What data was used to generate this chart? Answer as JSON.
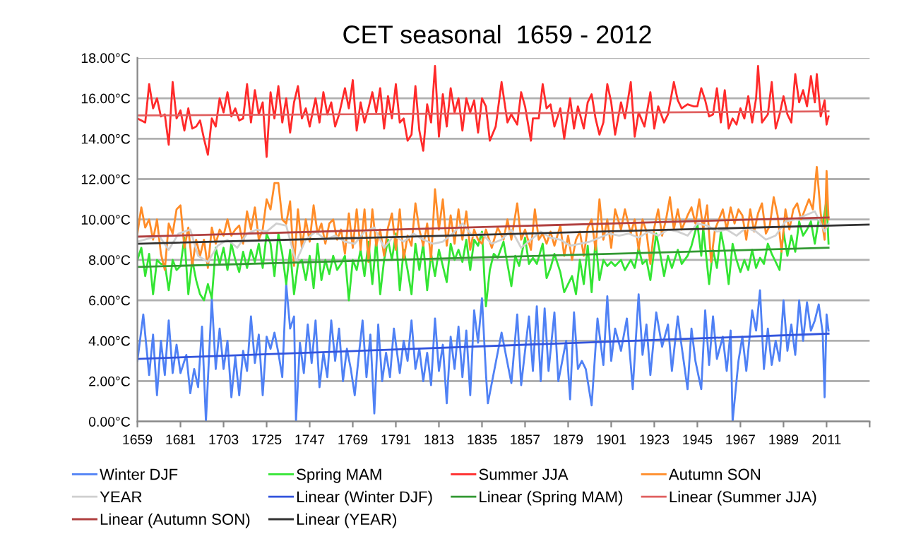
{
  "chart_data": {
    "type": "line",
    "title": "CET seasonal  1659 - 2012",
    "xlim": [
      1659,
      2033
    ],
    "xticks": [
      1659,
      1681,
      1703,
      1725,
      1747,
      1769,
      1791,
      1813,
      1835,
      1857,
      1879,
      1901,
      1923,
      1945,
      1967,
      1989,
      2011,
      {
        "value": 2033,
        "label": null
      }
    ],
    "ylim": [
      0,
      18
    ],
    "yticks": [
      {
        "value": 0,
        "label": "0.00°C"
      },
      {
        "value": 2,
        "label": "2.00°C"
      },
      {
        "value": 4,
        "label": "4.00°C"
      },
      {
        "value": 6,
        "label": "6.00°C"
      },
      {
        "value": 8,
        "label": "8.00°C"
      },
      {
        "value": 10,
        "label": "10.00°C"
      },
      {
        "value": 12,
        "label": "12.00°C"
      },
      {
        "value": 14,
        "label": "14.00°C"
      },
      {
        "value": 16,
        "label": "16.00°C"
      },
      {
        "value": 18,
        "label": "18.00°C"
      }
    ],
    "grid": "y",
    "legend": "bottom",
    "marker": "none",
    "line_style": "solid",
    "series": [
      {
        "name": "Winter DJF",
        "color": "#4f81f5",
        "x": [
          1659,
          1662,
          1665,
          1667,
          1669,
          1671,
          1673,
          1675,
          1677,
          1679,
          1681,
          1684,
          1686,
          1688,
          1690,
          1692,
          1694,
          1697,
          1699,
          1701,
          1703,
          1705,
          1707,
          1709,
          1711,
          1713,
          1715,
          1717,
          1719,
          1721,
          1723,
          1725,
          1727,
          1729,
          1731,
          1733,
          1735,
          1737,
          1739,
          1740,
          1742,
          1744,
          1746,
          1748,
          1750,
          1752,
          1754,
          1756,
          1758,
          1760,
          1762,
          1764,
          1766,
          1768,
          1770,
          1772,
          1774,
          1776,
          1778,
          1780,
          1782,
          1784,
          1786,
          1788,
          1790,
          1793,
          1795,
          1797,
          1799,
          1801,
          1803,
          1805,
          1807,
          1809,
          1811,
          1813,
          1815,
          1817,
          1819,
          1821,
          1823,
          1825,
          1827,
          1829,
          1831,
          1833,
          1835,
          1837,
          1838,
          1845,
          1850,
          1853,
          1855,
          1859,
          1861,
          1863,
          1865,
          1867,
          1869,
          1872,
          1874,
          1878,
          1880,
          1882,
          1884,
          1886,
          1888,
          1891,
          1894,
          1897,
          1899,
          1901,
          1903,
          1906,
          1909,
          1911,
          1912,
          1915,
          1917,
          1919,
          1921,
          1924,
          1927,
          1930,
          1932,
          1935,
          1937,
          1940,
          1942,
          1944,
          1947,
          1949,
          1951,
          1953,
          1955,
          1958,
          1960,
          1962,
          1963,
          1966,
          1968,
          1970,
          1973,
          1975,
          1977,
          1979,
          1981,
          1983,
          1985,
          1987,
          1989,
          1991,
          1993,
          1995,
          1997,
          1999,
          2001,
          2003,
          2005,
          2007,
          2009,
          2010,
          2011,
          2012
        ],
        "values": [
          3.0,
          5.3,
          2.3,
          4.3,
          1.3,
          4.0,
          2.3,
          5.0,
          2.4,
          3.8,
          2.4,
          3.3,
          1.4,
          2.6,
          1.7,
          4.7,
          0.0,
          6.1,
          2.6,
          4.6,
          2.6,
          4.0,
          1.2,
          3.2,
          1.3,
          3.5,
          2.5,
          5.2,
          2.9,
          4.3,
          1.3,
          4.2,
          3.6,
          4.4,
          3.4,
          2.2,
          6.8,
          4.6,
          5.2,
          0.0,
          3.9,
          2.4,
          4.8,
          2.9,
          5.0,
          1.7,
          3.4,
          2.2,
          5.0,
          3.0,
          4.6,
          2.0,
          3.6,
          2.6,
          1.3,
          3.2,
          5.0,
          2.2,
          4.3,
          0.4,
          4.8,
          2.0,
          3.4,
          2.2,
          4.6,
          2.4,
          4.0,
          3.0,
          5.0,
          2.6,
          3.6,
          2.0,
          3.4,
          1.8,
          5.1,
          2.5,
          3.8,
          0.9,
          4.2,
          2.6,
          4.7,
          2.2,
          4.5,
          1.3,
          5.5,
          3.9,
          6.1,
          2.4,
          0.9,
          4.4,
          1.9,
          5.3,
          1.8,
          5.2,
          2.5,
          5.7,
          2.0,
          5.6,
          2.5,
          5.4,
          2.0,
          4.0,
          1.1,
          5.4,
          2.6,
          3.0,
          2.6,
          0.8,
          5.1,
          2.8,
          6.2,
          3.0,
          4.6,
          3.5,
          5.1,
          2.8,
          1.6,
          6.3,
          3.3,
          4.8,
          2.3,
          5.4,
          3.7,
          4.8,
          2.5,
          5.2,
          3.7,
          1.6,
          4.6,
          3.0,
          1.6,
          5.5,
          2.8,
          5.2,
          3.1,
          4.2,
          2.5,
          4.5,
          0.0,
          3.0,
          4.2,
          2.5,
          5.5,
          4.5,
          6.5,
          2.6,
          4.6,
          2.8,
          4.0,
          3.0,
          6.0,
          3.5,
          4.8,
          3.3,
          6.0,
          4.0,
          5.9,
          4.5,
          5.0,
          5.8,
          4.4,
          1.2,
          5.3,
          4.5
        ]
      },
      {
        "name": "Spring MAM",
        "color": "#33e533",
        "x": [
          1659,
          1661,
          1663,
          1665,
          1667,
          1669,
          1671,
          1673,
          1675,
          1677,
          1679,
          1681,
          1683,
          1685,
          1687,
          1689,
          1691,
          1693,
          1695,
          1697,
          1699,
          1701,
          1703,
          1705,
          1707,
          1709,
          1711,
          1713,
          1715,
          1717,
          1719,
          1721,
          1723,
          1725,
          1727,
          1729,
          1731,
          1733,
          1735,
          1737,
          1739,
          1741,
          1743,
          1745,
          1747,
          1749,
          1751,
          1753,
          1755,
          1757,
          1759,
          1761,
          1763,
          1765,
          1767,
          1769,
          1771,
          1773,
          1775,
          1777,
          1779,
          1781,
          1783,
          1785,
          1787,
          1789,
          1791,
          1793,
          1795,
          1797,
          1799,
          1801,
          1803,
          1805,
          1807,
          1809,
          1811,
          1813,
          1815,
          1817,
          1819,
          1821,
          1823,
          1825,
          1827,
          1829,
          1831,
          1833,
          1835,
          1837,
          1839,
          1841,
          1843,
          1846,
          1848,
          1850,
          1852,
          1854,
          1857,
          1859,
          1861,
          1863,
          1866,
          1868,
          1870,
          1872,
          1875,
          1877,
          1879,
          1881,
          1883,
          1885,
          1887,
          1889,
          1891,
          1893,
          1895,
          1897,
          1899,
          1901,
          1903,
          1906,
          1908,
          1911,
          1913,
          1915,
          1917,
          1919,
          1921,
          1924,
          1926,
          1928,
          1930,
          1932,
          1935,
          1937,
          1940,
          1942,
          1945,
          1947,
          1948,
          1951,
          1953,
          1955,
          1957,
          1959,
          1961,
          1963,
          1965,
          1967,
          1969,
          1971,
          1973,
          1975,
          1977,
          1979,
          1981,
          1983,
          1985,
          1987,
          1989,
          1991,
          1993,
          1995,
          1997,
          1999,
          2001,
          2003,
          2005,
          2007,
          2009,
          2011,
          2012
        ],
        "values": [
          8.0,
          8.6,
          7.2,
          8.3,
          6.3,
          8.0,
          7.8,
          7.8,
          6.5,
          8.0,
          7.5,
          7.7,
          9.1,
          6.3,
          8.0,
          7.0,
          6.3,
          6.0,
          6.8,
          6.1,
          8.6,
          7.8,
          8.6,
          7.5,
          8.8,
          8.0,
          7.4,
          8.4,
          7.6,
          8.5,
          7.9,
          8.8,
          7.6,
          9.3,
          8.8,
          7.2,
          9.3,
          8.3,
          6.8,
          8.5,
          6.3,
          7.8,
          8.0,
          7.0,
          8.2,
          6.6,
          8.8,
          7.0,
          8.0,
          7.3,
          8.2,
          7.5,
          7.8,
          8.2,
          6.0,
          8.0,
          7.5,
          8.5,
          7.2,
          8.9,
          6.8,
          9.0,
          6.3,
          8.0,
          9.0,
          8.0,
          9.3,
          6.5,
          8.5,
          7.5,
          6.3,
          8.8,
          7.5,
          8.8,
          6.5,
          8.3,
          7.2,
          8.5,
          7.7,
          6.9,
          8.8,
          8.0,
          8.5,
          7.9,
          9.0,
          7.5,
          9.0,
          8.7,
          9.4,
          5.7,
          7.5,
          8.3,
          8.1,
          8.9,
          7.8,
          6.7,
          8.2,
          7.7,
          9.1,
          7.8,
          8.1,
          7.8,
          8.8,
          7.1,
          7.6,
          8.3,
          7.4,
          6.4,
          6.8,
          7.2,
          6.3,
          8.0,
          6.8,
          8.7,
          6.4,
          9.0,
          7.0,
          8.0,
          7.7,
          7.9,
          7.7,
          8.0,
          7.5,
          8.0,
          7.6,
          8.6,
          7.8,
          8.0,
          7.0,
          9.3,
          8.3,
          7.2,
          8.2,
          7.6,
          8.5,
          7.8,
          8.2,
          8.7,
          9.8,
          8.2,
          9.6,
          6.8,
          8.5,
          7.6,
          9.4,
          8.4,
          6.8,
          8.8,
          8.0,
          7.4,
          8.0,
          7.5,
          8.5,
          7.6,
          8.1,
          7.8,
          8.8,
          8.3,
          7.9,
          7.5,
          9.4,
          8.2,
          9.2,
          8.4,
          9.9,
          9.2,
          9.5,
          9.9,
          8.8,
          10.0,
          9.7,
          11.0,
          8.8
        ]
      },
      {
        "name": "Summer JJA",
        "color": "#ff2a2a",
        "x": [
          1659,
          1661,
          1663,
          1665,
          1667,
          1669,
          1671,
          1673,
          1675,
          1677,
          1679,
          1681,
          1683,
          1685,
          1687,
          1689,
          1691,
          1693,
          1695,
          1697,
          1699,
          1701,
          1703,
          1705,
          1707,
          1709,
          1711,
          1713,
          1715,
          1717,
          1719,
          1721,
          1723,
          1725,
          1727,
          1729,
          1731,
          1733,
          1735,
          1737,
          1739,
          1741,
          1743,
          1745,
          1747,
          1750,
          1752,
          1754,
          1756,
          1758,
          1760,
          1762,
          1765,
          1767,
          1769,
          1771,
          1773,
          1775,
          1777,
          1779,
          1781,
          1783,
          1785,
          1787,
          1789,
          1791,
          1793,
          1795,
          1797,
          1799,
          1801,
          1803,
          1805,
          1807,
          1809,
          1811,
          1813,
          1815,
          1817,
          1819,
          1821,
          1823,
          1825,
          1827,
          1829,
          1831,
          1833,
          1835,
          1837,
          1839,
          1842,
          1845,
          1848,
          1850,
          1853,
          1855,
          1857,
          1860,
          1861,
          1864,
          1866,
          1868,
          1870,
          1872,
          1875,
          1877,
          1880,
          1882,
          1884,
          1887,
          1889,
          1891,
          1893,
          1895,
          1897,
          1899,
          1901,
          1903,
          1906,
          1908,
          1911,
          1913,
          1915,
          1918,
          1921,
          1923,
          1925,
          1928,
          1930,
          1933,
          1935,
          1937,
          1940,
          1943,
          1945,
          1947,
          1949,
          1951,
          1953,
          1955,
          1957,
          1959,
          1961,
          1963,
          1965,
          1967,
          1969,
          1971,
          1973,
          1975,
          1976,
          1978,
          1981,
          1983,
          1985,
          1987,
          1989,
          1991,
          1993,
          1995,
          1997,
          1999,
          2001,
          2003,
          2005,
          2006,
          2008,
          2010,
          2011,
          2012
        ],
        "values": [
          15.0,
          14.9,
          14.8,
          16.7,
          15.5,
          16.0,
          15.1,
          15.2,
          13.7,
          16.8,
          15.0,
          15.4,
          14.4,
          15.5,
          14.5,
          14.6,
          14.9,
          14.0,
          13.2,
          15.0,
          14.6,
          16.0,
          15.3,
          16.3,
          15.1,
          15.5,
          14.9,
          15.0,
          16.7,
          14.8,
          16.4,
          15.2,
          15.8,
          13.1,
          16.3,
          15.0,
          16.6,
          14.8,
          16.0,
          14.3,
          15.8,
          16.6,
          15.0,
          15.5,
          14.6,
          16.0,
          14.8,
          16.3,
          15.2,
          15.8,
          14.6,
          15.2,
          16.5,
          15.5,
          16.9,
          14.4,
          15.8,
          14.8,
          15.5,
          16.3,
          15.3,
          16.5,
          14.5,
          16.1,
          15.0,
          16.7,
          14.8,
          15.0,
          13.9,
          14.2,
          16.6,
          14.4,
          13.4,
          15.7,
          14.8,
          17.6,
          14.1,
          16.2,
          14.6,
          16.5,
          15.3,
          16.0,
          14.4,
          16.0,
          15.3,
          15.9,
          14.3,
          16.0,
          15.6,
          13.9,
          14.6,
          16.8,
          14.8,
          15.2,
          14.7,
          16.3,
          15.6,
          13.9,
          15.0,
          15.0,
          16.7,
          15.5,
          15.7,
          14.6,
          15.5,
          14.0,
          16.0,
          14.5,
          15.6,
          14.5,
          15.8,
          16.2,
          15.0,
          14.2,
          14.8,
          16.7,
          15.8,
          14.2,
          15.8,
          15.0,
          16.8,
          14.1,
          15.3,
          14.6,
          16.3,
          14.5,
          15.6,
          14.8,
          15.2,
          16.8,
          15.9,
          15.5,
          15.7,
          15.6,
          15.6,
          16.5,
          15.9,
          15.1,
          15.2,
          16.5,
          14.8,
          16.4,
          14.5,
          15.0,
          14.7,
          15.5,
          15.0,
          16.1,
          14.8,
          16.0,
          17.6,
          14.8,
          15.2,
          16.8,
          14.5,
          15.2,
          16.1,
          15.2,
          14.8,
          17.2,
          15.8,
          16.4,
          15.6,
          17.1,
          15.8,
          17.2,
          15.1,
          15.9,
          14.7,
          15.1
        ]
      },
      {
        "name": "Autumn SON",
        "color": "#ff8c28",
        "x": [
          1659,
          1661,
          1663,
          1665,
          1667,
          1669,
          1671,
          1673,
          1675,
          1677,
          1679,
          1681,
          1683,
          1685,
          1687,
          1689,
          1691,
          1693,
          1695,
          1697,
          1699,
          1701,
          1703,
          1705,
          1707,
          1709,
          1711,
          1713,
          1715,
          1717,
          1719,
          1721,
          1723,
          1725,
          1727,
          1729,
          1731,
          1733,
          1735,
          1737,
          1739,
          1741,
          1743,
          1745,
          1747,
          1749,
          1751,
          1753,
          1755,
          1757,
          1759,
          1761,
          1763,
          1765,
          1767,
          1769,
          1771,
          1773,
          1775,
          1777,
          1779,
          1781,
          1783,
          1785,
          1787,
          1789,
          1791,
          1793,
          1795,
          1797,
          1799,
          1801,
          1803,
          1805,
          1807,
          1809,
          1811,
          1813,
          1815,
          1817,
          1819,
          1821,
          1823,
          1825,
          1827,
          1829,
          1831,
          1833,
          1835,
          1837,
          1840,
          1843,
          1846,
          1848,
          1850,
          1853,
          1855,
          1857,
          1860,
          1862,
          1864,
          1866,
          1868,
          1870,
          1872,
          1875,
          1877,
          1879,
          1881,
          1883,
          1885,
          1887,
          1889,
          1891,
          1893,
          1895,
          1897,
          1899,
          1901,
          1903,
          1906,
          1908,
          1911,
          1913,
          1915,
          1917,
          1919,
          1921,
          1923,
          1925,
          1927,
          1929,
          1931,
          1933,
          1935,
          1937,
          1940,
          1942,
          1944,
          1946,
          1948,
          1950,
          1952,
          1954,
          1956,
          1958,
          1960,
          1962,
          1964,
          1966,
          1968,
          1970,
          1972,
          1974,
          1976,
          1978,
          1980,
          1982,
          1984,
          1986,
          1988,
          1990,
          1992,
          1994,
          1996,
          1998,
          2000,
          2002,
          2004,
          2006,
          2008,
          2010,
          2011,
          2012
        ],
        "values": [
          9.3,
          10.6,
          9.6,
          10.0,
          9.0,
          10.0,
          8.3,
          7.5,
          9.8,
          9.3,
          10.5,
          10.7,
          8.6,
          9.6,
          7.7,
          9.0,
          8.2,
          9.0,
          7.6,
          9.6,
          8.8,
          9.5,
          9.2,
          10.0,
          9.2,
          9.5,
          9.7,
          8.8,
          10.4,
          9.5,
          10.6,
          9.0,
          9.5,
          11.0,
          10.5,
          11.8,
          11.8,
          10.0,
          9.8,
          10.9,
          7.7,
          10.5,
          8.6,
          10.0,
          8.9,
          10.7,
          9.3,
          9.8,
          8.8,
          9.8,
          10.0,
          9.0,
          9.5,
          8.3,
          10.3,
          8.6,
          10.5,
          8.5,
          10.5,
          7.9,
          10.5,
          8.7,
          9.5,
          8.2,
          9.6,
          10.3,
          8.5,
          10.5,
          8.0,
          9.2,
          8.7,
          10.8,
          9.5,
          8.7,
          9.8,
          8.0,
          11.5,
          9.5,
          11.0,
          8.7,
          10.2,
          8.8,
          10.5,
          9.0,
          10.4,
          8.5,
          9.5,
          9.0,
          8.8,
          9.5,
          8.6,
          9.6,
          9.0,
          10.0,
          9.0,
          10.8,
          9.0,
          9.5,
          8.5,
          10.5,
          9.0,
          9.3,
          8.8,
          9.4,
          8.7,
          9.7,
          8.2,
          9.2,
          8.0,
          9.0,
          9.4,
          8.2,
          9.6,
          10.0,
          8.5,
          11.0,
          9.0,
          10.0,
          8.6,
          10.5,
          9.5,
          10.5,
          9.3,
          10.0,
          8.5,
          10.0,
          9.4,
          7.8,
          9.6,
          10.5,
          9.2,
          10.0,
          11.1,
          9.5,
          10.5,
          9.5,
          10.2,
          10.6,
          9.8,
          11.0,
          9.5,
          10.7,
          7.9,
          9.5,
          10.0,
          10.5,
          9.5,
          10.6,
          9.8,
          10.5,
          10.2,
          9.0,
          10.5,
          9.4,
          10.3,
          10.8,
          9.3,
          9.7,
          11.1,
          10.2,
          8.4,
          10.5,
          9.5,
          10.5,
          10.8,
          10.0,
          10.5,
          11.0,
          10.5,
          12.6,
          10.3,
          9.0,
          12.4,
          10.0
        ]
      },
      {
        "name": "YEAR",
        "color": "#d0d0d0",
        "x": [
          1659,
          1670,
          1675,
          1680,
          1686,
          1690,
          1695,
          1700,
          1705,
          1710,
          1715,
          1720,
          1725,
          1730,
          1735,
          1740,
          1745,
          1750,
          1755,
          1760,
          1765,
          1770,
          1775,
          1780,
          1785,
          1790,
          1795,
          1800,
          1805,
          1810,
          1815,
          1820,
          1825,
          1830,
          1835,
          1840,
          1845,
          1850,
          1855,
          1860,
          1865,
          1870,
          1875,
          1880,
          1885,
          1890,
          1895,
          1900,
          1905,
          1910,
          1915,
          1920,
          1925,
          1930,
          1935,
          1940,
          1945,
          1950,
          1955,
          1960,
          1965,
          1970,
          1975,
          1980,
          1985,
          1990,
          1995,
          2000,
          2005,
          2010,
          2012
        ],
        "values": [
          8.9,
          9.2,
          8.5,
          9.3,
          9.5,
          8.2,
          7.9,
          8.7,
          9.0,
          8.6,
          9.3,
          9.5,
          9.4,
          9.8,
          9.7,
          7.9,
          9.0,
          9.4,
          9.0,
          9.2,
          8.9,
          8.8,
          9.4,
          9.6,
          8.6,
          9.2,
          8.9,
          9.3,
          9.0,
          8.8,
          8.9,
          9.3,
          9.8,
          9.2,
          9.3,
          8.8,
          9.0,
          9.5,
          8.6,
          9.0,
          9.4,
          9.1,
          9.0,
          8.7,
          8.8,
          8.9,
          9.1,
          9.3,
          9.2,
          9.3,
          9.1,
          9.4,
          9.2,
          9.5,
          9.4,
          9.2,
          9.8,
          9.7,
          9.4,
          9.5,
          9.2,
          9.6,
          9.4,
          9.0,
          9.2,
          9.9,
          10.0,
          10.2,
          10.4,
          9.4,
          9.8
        ]
      },
      {
        "name": "Linear (Winter DJF)",
        "color": "#3355dd",
        "x": [
          1659,
          2012
        ],
        "values": [
          3.1,
          4.35
        ]
      },
      {
        "name": "Linear (Spring MAM)",
        "color": "#339933",
        "x": [
          1659,
          2012
        ],
        "values": [
          7.65,
          8.6
        ]
      },
      {
        "name": "Linear (Summer JJA)",
        "color": "#e06060",
        "x": [
          1659,
          2012
        ],
        "values": [
          15.15,
          15.35
        ]
      },
      {
        "name": "Linear (Autumn SON)",
        "color": "#b04040",
        "x": [
          1659,
          2012
        ],
        "values": [
          9.15,
          10.1
        ]
      },
      {
        "name": "Linear (YEAR)",
        "color": "#333333",
        "x": [
          1659,
          2033
        ],
        "values": [
          8.8,
          9.75
        ]
      }
    ]
  }
}
